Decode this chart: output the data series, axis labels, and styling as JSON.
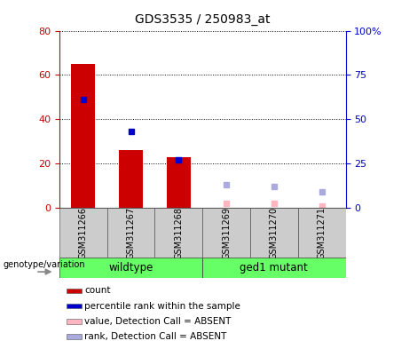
{
  "title": "GDS3535 / 250983_at",
  "samples": [
    "GSM311266",
    "GSM311267",
    "GSM311268",
    "GSM311269",
    "GSM311270",
    "GSM311271"
  ],
  "count_values": [
    65,
    26,
    23,
    null,
    null,
    null
  ],
  "rank_values_pct": [
    61,
    43,
    27,
    null,
    null,
    null
  ],
  "absent_count_values": [
    null,
    null,
    null,
    2,
    2,
    1
  ],
  "absent_rank_pct": [
    null,
    null,
    null,
    13,
    12,
    9
  ],
  "bar_color": "#CC0000",
  "rank_color": "#0000CC",
  "absent_count_color": "#FFB6C1",
  "absent_rank_color": "#AAAADD",
  "left_ylim": [
    0,
    80
  ],
  "right_ylim": [
    0,
    100
  ],
  "left_yticks": [
    0,
    20,
    40,
    60,
    80
  ],
  "right_yticks": [
    0,
    25,
    50,
    75,
    100
  ],
  "right_yticklabels": [
    "0",
    "25",
    "50",
    "75",
    "100%"
  ],
  "left_tick_color": "#CC0000",
  "right_tick_color": "#0000CC",
  "bg_color": "#CCCCCC",
  "plot_bg_color": "#FFFFFF",
  "legend_items": [
    "count",
    "percentile rank within the sample",
    "value, Detection Call = ABSENT",
    "rank, Detection Call = ABSENT"
  ],
  "legend_colors": [
    "#CC0000",
    "#0000CC",
    "#FFB6C1",
    "#AAAADD"
  ],
  "genotype_label": "genotype/variation",
  "group1_label": "wildtype",
  "group2_label": "ged1 mutant"
}
